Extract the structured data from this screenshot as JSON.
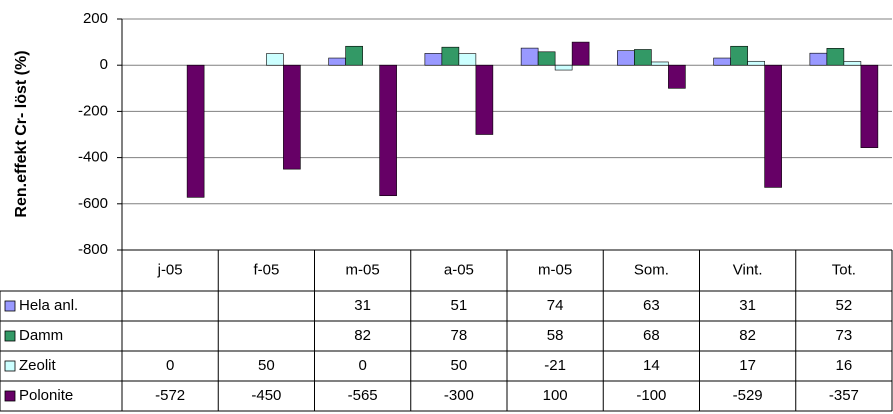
{
  "chart_data": {
    "type": "bar",
    "y_label": "Ren.effekt Cr- löst (%)",
    "categories": [
      "j-05",
      "f-05",
      "m-05",
      "a-05",
      "m-05",
      "Som.",
      "Vint.",
      "Tot."
    ],
    "series": [
      {
        "name": "Hela anl.",
        "color": "#9999ff",
        "values": [
          null,
          null,
          31,
          51,
          74,
          63,
          31,
          52
        ]
      },
      {
        "name": "Damm",
        "color": "#339966",
        "values": [
          null,
          null,
          82,
          78,
          58,
          68,
          82,
          73
        ]
      },
      {
        "name": "Zeolit",
        "color": "#ccffff",
        "values": [
          0,
          50,
          0,
          50,
          -21,
          14,
          17,
          16
        ]
      },
      {
        "name": "Polonite",
        "color": "#660066",
        "values": [
          -572,
          -450,
          -565,
          -300,
          100,
          -100,
          -529,
          -357
        ]
      }
    ],
    "ylim": [
      -800,
      200
    ],
    "yticks": [
      -800,
      -600,
      -400,
      -200,
      0,
      200
    ],
    "grid": true
  }
}
